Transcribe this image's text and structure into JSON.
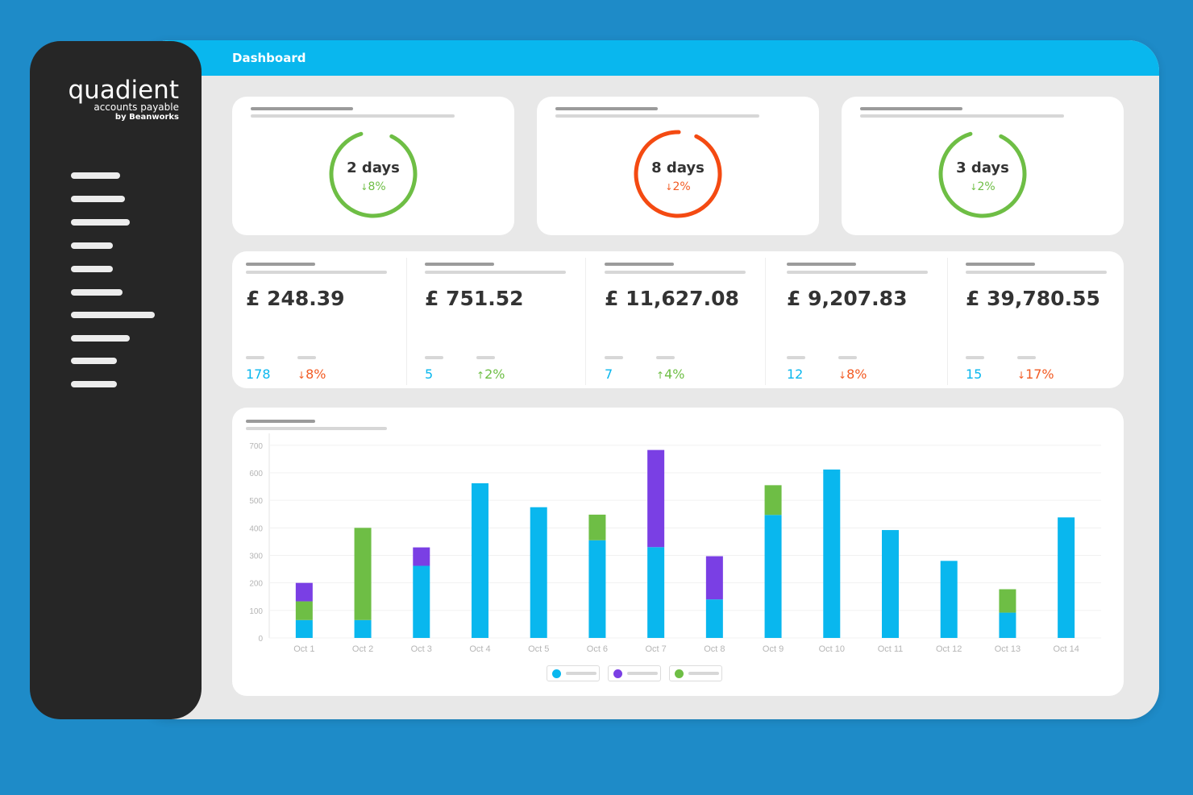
{
  "header": {
    "title": "Dashboard"
  },
  "brand": {
    "name": "quadient",
    "product": "accounts payable",
    "by": "by Beanworks"
  },
  "sidebar": {
    "items": 10
  },
  "rings": [
    {
      "days": "2 days",
      "delta": "8%",
      "direction": "down",
      "color": "#6ebe45",
      "delta_color": "#6ebe45",
      "progress": 0.88
    },
    {
      "days": "8 days",
      "delta": "2%",
      "direction": "down",
      "color": "#f44a12",
      "delta_color": "#f25a22",
      "progress": 0.93
    },
    {
      "days": "3 days",
      "delta": "2%",
      "direction": "down",
      "color": "#6ebe45",
      "delta_color": "#6ebe45",
      "progress": 0.88
    }
  ],
  "stats": [
    {
      "amount": "£ 248.39",
      "count": "178",
      "delta": "8%",
      "direction": "down",
      "delta_color": "#f25a22"
    },
    {
      "amount": "£ 751.52",
      "count": "5",
      "delta": "2%",
      "direction": "up",
      "delta_color": "#6ebe45"
    },
    {
      "amount": "£ 11,627.08",
      "count": "7",
      "delta": "4%",
      "direction": "up",
      "delta_color": "#6ebe45"
    },
    {
      "amount": "£ 9,207.83",
      "count": "12",
      "delta": "8%",
      "direction": "down",
      "delta_color": "#f25a22"
    },
    {
      "amount": "£ 39,780.55",
      "count": "15",
      "delta": "17%",
      "direction": "down",
      "delta_color": "#f25a22"
    }
  ],
  "chart_data": {
    "type": "bar",
    "stacked": true,
    "categories": [
      "Oct 1",
      "Oct 2",
      "Oct 3",
      "Oct 4",
      "Oct 5",
      "Oct 6",
      "Oct 7",
      "Oct 8",
      "Oct 9",
      "Oct 10",
      "Oct 11",
      "Oct 12",
      "Oct 13",
      "Oct 14"
    ],
    "series": [
      {
        "color": "#09b7ee",
        "values": [
          65,
          65,
          262,
          562,
          475,
          355,
          330,
          140,
          447,
          612,
          392,
          280,
          92,
          438
        ]
      },
      {
        "color": "#6ebe45",
        "values": [
          68,
          335,
          0,
          0,
          0,
          93,
          0,
          0,
          108,
          0,
          0,
          0,
          85,
          0
        ]
      },
      {
        "color": "#7a3fe4",
        "values": [
          67,
          0,
          67,
          0,
          0,
          0,
          353,
          157,
          0,
          0,
          0,
          0,
          0,
          0
        ]
      }
    ],
    "yticks": [
      0,
      100,
      200,
      300,
      400,
      500,
      600,
      700
    ],
    "ylim": [
      0,
      720
    ],
    "grid": true,
    "legend_position": "bottom"
  }
}
